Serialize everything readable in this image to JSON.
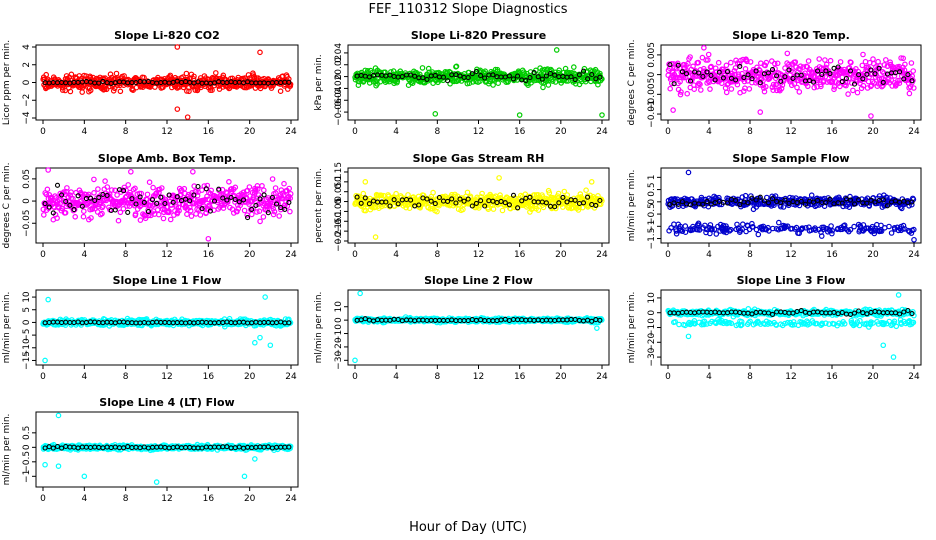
{
  "figure": {
    "title": "FEF_110312  Slope Diagnostics",
    "xlabel": "Hour of Day (UTC)"
  },
  "chart_data": [
    {
      "type": "scatter",
      "title": "Slope Li-820 CO2",
      "ylabel": "Licor ppm per min.",
      "xlim": [
        0,
        24
      ],
      "ylim": [
        -4,
        4
      ],
      "xticks": [
        0,
        4,
        8,
        12,
        16,
        20,
        24
      ],
      "yticks": [
        -4,
        -2,
        0,
        2,
        4
      ],
      "scatter_color": "#ff0000",
      "scatter_spread": 0.8,
      "scatter_extremes": [
        [
          13,
          4
        ],
        [
          21,
          3.4
        ],
        [
          14,
          -3.9
        ],
        [
          13,
          -3
        ]
      ],
      "black_spread": 0.12,
      "black_shift": 0
    },
    {
      "type": "scatter",
      "title": "Slope Li-820 Pressure",
      "ylabel": "kPa per min.",
      "xlim": [
        0,
        24
      ],
      "ylim": [
        -0.07,
        0.05
      ],
      "xticks": [
        0,
        4,
        8,
        12,
        16,
        20,
        24
      ],
      "yticks": [
        -0.06,
        -0.04,
        -0.02,
        0,
        0.02,
        0.04
      ],
      "scatter_color": "#00cc00",
      "scatter_spread": 0.012,
      "scatter_extremes": [
        [
          7.8,
          -0.063
        ],
        [
          16,
          -0.065
        ],
        [
          24,
          -0.065
        ],
        [
          19.6,
          0.045
        ]
      ],
      "black_spread": 0.006,
      "black_shift": 0
    },
    {
      "type": "scatter",
      "title": "Slope Li-820 Temp.",
      "ylabel": "degrees C per min.",
      "xlim": [
        0,
        24
      ],
      "ylim": [
        -0.011,
        0.007
      ],
      "xticks": [
        0,
        4,
        8,
        12,
        16,
        20,
        24
      ],
      "yticks": [
        -0.01,
        -0.005,
        0,
        0.005
      ],
      "scatter_color": "#ff00ff",
      "scatter_spread": 0.004,
      "scatter_extremes": [
        [
          3.5,
          0.0068
        ],
        [
          9,
          -0.0095
        ],
        [
          19.8,
          -0.0105
        ],
        [
          0.5,
          -0.009
        ]
      ],
      "black_spread": 0.0025,
      "black_shift": 0
    },
    {
      "type": "scatter",
      "title": "Slope Amb. Box Temp.",
      "ylabel": "degrees C per min.",
      "xlim": [
        0,
        24
      ],
      "ylim": [
        -0.09,
        0.07
      ],
      "xticks": [
        0,
        4,
        8,
        12,
        16,
        20,
        24
      ],
      "yticks": [
        -0.05,
        0,
        0.05
      ],
      "scatter_color": "#ff00ff",
      "scatter_spread": 0.035,
      "scatter_extremes": [
        [
          0.5,
          0.07
        ],
        [
          8.5,
          0.066
        ],
        [
          14.5,
          0.066
        ],
        [
          16,
          -0.085
        ]
      ],
      "black_spread": 0.03,
      "black_shift": 0
    },
    {
      "type": "scatter",
      "title": "Slope Gas Stream RH",
      "ylabel": "percent per min.",
      "xlim": [
        0,
        24
      ],
      "ylim": [
        -0.2,
        0.16
      ],
      "xticks": [
        0,
        4,
        8,
        12,
        16,
        20,
        24
      ],
      "yticks": [
        -0.2,
        -0.15,
        -0.1,
        -0.05,
        0,
        0.05,
        0.1,
        0.15
      ],
      "scatter_color": "#ffff00",
      "scatter_spread": 0.04,
      "scatter_extremes": [
        [
          2,
          -0.18
        ],
        [
          14,
          0.12
        ],
        [
          23,
          0.1
        ],
        [
          1,
          0.1
        ]
      ],
      "black_spread": 0.03,
      "black_shift": 0
    },
    {
      "type": "scatter",
      "title": "Slope Sample Flow",
      "ylabel": "ml/min per min.",
      "xlim": [
        0,
        24
      ],
      "ylim": [
        -1.6,
        1.3
      ],
      "xticks": [
        0,
        4,
        8,
        12,
        16,
        20,
        24
      ],
      "yticks": [
        -1.5,
        -1,
        -0.5,
        0,
        0.5,
        1
      ],
      "scatter_color": "#0000cc",
      "scatter_spread": 0.2,
      "scatter_extremes": [
        [
          2,
          1.2
        ],
        [
          15,
          -1.4
        ],
        [
          24,
          -1.55
        ]
      ],
      "second_band": -1.1,
      "black_spread": 0.15,
      "black_shift": 0
    },
    {
      "type": "scatter",
      "title": "Slope Line 1 Flow",
      "ylabel": "ml/min per min.",
      "xlim": [
        0,
        24
      ],
      "ylim": [
        -16,
        12
      ],
      "xticks": [
        0,
        4,
        8,
        12,
        16,
        20,
        24
      ],
      "yticks": [
        -15,
        -10,
        -5,
        0,
        5,
        10
      ],
      "scatter_color": "#00ffff",
      "scatter_spread": 1.2,
      "scatter_extremes": [
        [
          0.5,
          9
        ],
        [
          0.2,
          -15
        ],
        [
          21.5,
          10
        ],
        [
          20.5,
          -8
        ],
        [
          22,
          -9
        ],
        [
          21,
          -6
        ]
      ],
      "black_spread": 0.25,
      "black_shift": 0
    },
    {
      "type": "scatter",
      "title": "Slope Line 2 Flow",
      "ylabel": "ml/min per min.",
      "xlim": [
        0,
        24
      ],
      "ylim": [
        -32,
        21
      ],
      "xticks": [
        0,
        4,
        8,
        12,
        16,
        20,
        24
      ],
      "yticks": [
        -30,
        -20,
        -10,
        0,
        10
      ],
      "scatter_color": "#00ffff",
      "scatter_spread": 1.5,
      "scatter_extremes": [
        [
          0.5,
          20
        ],
        [
          0,
          -30
        ],
        [
          23.5,
          -6
        ]
      ],
      "black_spread": 0.8,
      "black_shift": 0
    },
    {
      "type": "scatter",
      "title": "Slope Line 3 Flow",
      "ylabel": "ml/min per min.",
      "xlim": [
        0,
        24
      ],
      "ylim": [
        -34,
        14
      ],
      "xticks": [
        0,
        4,
        8,
        12,
        16,
        20,
        24
      ],
      "yticks": [
        -30,
        -20,
        -10,
        0,
        10
      ],
      "scatter_color": "#00ffff",
      "scatter_spread": 2,
      "scatter_extremes": [
        [
          2,
          -16
        ],
        [
          22,
          -30
        ],
        [
          21,
          -22
        ],
        [
          22.5,
          12
        ]
      ],
      "second_band": -7,
      "black_spread": 1,
      "black_shift": 0
    },
    {
      "type": "scatter",
      "title": "Slope Line 4 (LT) Flow",
      "ylabel": "ml/min per min.",
      "xlim": [
        0,
        24
      ],
      "ylim": [
        -1.3,
        1.15
      ],
      "xticks": [
        0,
        4,
        8,
        12,
        16,
        20,
        24
      ],
      "yticks": [
        -1,
        -0.5,
        0,
        0.5
      ],
      "scatter_color": "#00ffff",
      "scatter_spread": 0.08,
      "scatter_extremes": [
        [
          1.5,
          1.1
        ],
        [
          0.2,
          -0.6
        ],
        [
          1.5,
          -0.65
        ],
        [
          4,
          -1
        ],
        [
          11,
          -1.2
        ],
        [
          19.5,
          -1
        ],
        [
          20.5,
          -0.4
        ]
      ],
      "black_spread": 0.03,
      "black_shift": 0
    }
  ]
}
